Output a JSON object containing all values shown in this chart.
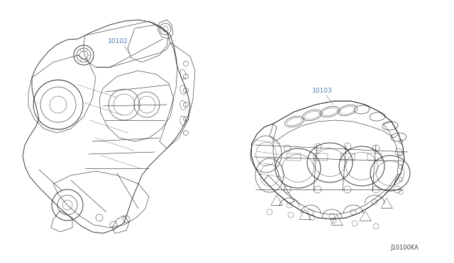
{
  "background_color": "#ffffff",
  "fig_width": 6.4,
  "fig_height": 3.72,
  "dpi": 100,
  "label_10102": "10102",
  "label_10103": "10103",
  "diagram_code": "J10100KA",
  "label_color": "#4a7ab5",
  "line_color": "#666666",
  "drawing_color": "#1a1a1a",
  "label_fontsize": 6.5,
  "code_fontsize": 6.0
}
